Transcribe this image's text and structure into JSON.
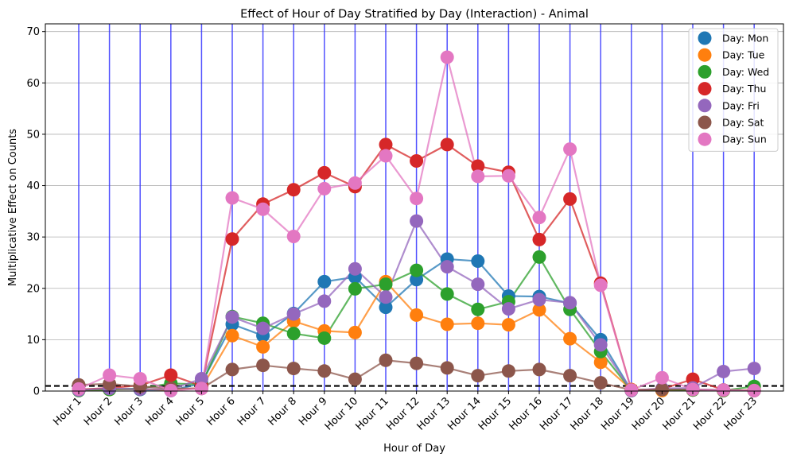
{
  "chart_data": {
    "type": "line",
    "title": "Effect of Hour of Day Stratified by Day (Interaction) - Animal",
    "xlabel": "Hour of Day",
    "ylabel": "Multiplicative Effect on Counts",
    "categories": [
      "Hour 1",
      "Hour 2",
      "Hour 3",
      "Hour 4",
      "Hour 5",
      "Hour 6",
      "Hour 7",
      "Hour 8",
      "Hour 9",
      "Hour 10",
      "Hour 11",
      "Hour 12",
      "Hour 13",
      "Hour 14",
      "Hour 15",
      "Hour 16",
      "Hour 17",
      "Hour 18",
      "Hour 19",
      "Hour 20",
      "Hour 21",
      "Hour 22",
      "Hour 23"
    ],
    "ylim": [
      0,
      71.5
    ],
    "yticks": [
      0,
      10,
      20,
      30,
      40,
      50,
      60,
      70
    ],
    "reference_line": 1,
    "grid": "horizontal",
    "legend_position": "top-right",
    "series": [
      {
        "name": "Day: Mon",
        "color": "#1f77b4",
        "values": [
          0.3,
          0.4,
          0.3,
          0.1,
          1.5,
          13.0,
          10.8,
          15.1,
          21.3,
          22.2,
          16.3,
          21.7,
          25.7,
          25.3,
          18.5,
          18.4,
          17.1,
          10.0,
          0.1,
          0.2,
          0.3,
          0.2,
          0.1
        ]
      },
      {
        "name": "Day: Tue",
        "color": "#ff7f0e",
        "values": [
          0.2,
          0.3,
          0.4,
          0.2,
          0.6,
          10.8,
          8.6,
          13.6,
          11.7,
          11.4,
          21.3,
          14.8,
          13.0,
          13.2,
          12.9,
          15.8,
          10.2,
          5.6,
          0.3,
          0.1,
          0.2,
          0.1,
          0.2
        ]
      },
      {
        "name": "Day: Wed",
        "color": "#2ca02c",
        "values": [
          0.1,
          0.3,
          0.5,
          1.5,
          1.3,
          14.5,
          13.2,
          11.2,
          10.3,
          19.9,
          20.8,
          23.5,
          18.9,
          15.9,
          17.4,
          26.1,
          15.9,
          7.7,
          0.1,
          0.3,
          0.2,
          0.1,
          0.9
        ]
      },
      {
        "name": "Day: Thu",
        "color": "#d62728",
        "values": [
          0.3,
          0.6,
          1.1,
          3.1,
          1.0,
          29.6,
          36.4,
          39.2,
          42.5,
          39.8,
          48.0,
          44.8,
          48.0,
          43.8,
          42.6,
          29.5,
          37.4,
          21.0,
          0.2,
          0.4,
          2.3,
          0.2,
          0.1
        ]
      },
      {
        "name": "Day: Fri",
        "color": "#9467bd",
        "values": [
          0.2,
          0.5,
          0.4,
          0.3,
          2.4,
          14.4,
          12.2,
          15.0,
          17.5,
          23.8,
          18.3,
          33.1,
          24.2,
          20.8,
          16.0,
          17.8,
          17.2,
          9.0,
          0.1,
          0.5,
          0.6,
          3.8,
          4.4
        ]
      },
      {
        "name": "Day: Sat",
        "color": "#8c564b",
        "values": [
          1.2,
          1.4,
          0.9,
          0.5,
          0.5,
          4.2,
          5.0,
          4.4,
          3.9,
          2.3,
          6.0,
          5.4,
          4.5,
          3.0,
          3.9,
          4.2,
          3.0,
          1.6,
          0.2,
          0.3,
          0.3,
          0.2,
          0.1
        ]
      },
      {
        "name": "Day: Sun",
        "color": "#e377c2",
        "values": [
          0.4,
          3.1,
          2.4,
          0.1,
          0.5,
          37.6,
          35.4,
          30.1,
          39.4,
          40.5,
          45.8,
          37.5,
          65.0,
          41.8,
          41.9,
          33.8,
          47.1,
          20.6,
          0.2,
          2.6,
          0.3,
          0.2,
          0.1
        ]
      }
    ],
    "error_bars": {
      "color": "#3333ff",
      "upper": [
        80,
        80,
        80,
        80,
        80,
        80,
        80,
        80,
        80,
        80,
        80,
        80,
        80,
        80,
        80,
        80,
        80,
        80,
        80,
        80,
        80,
        80,
        80
      ],
      "lower": [
        0,
        0,
        0,
        0,
        0,
        0,
        0,
        0,
        0,
        0,
        0,
        0,
        0,
        0,
        0,
        0,
        0,
        0,
        0,
        0,
        0,
        0,
        0
      ]
    }
  }
}
